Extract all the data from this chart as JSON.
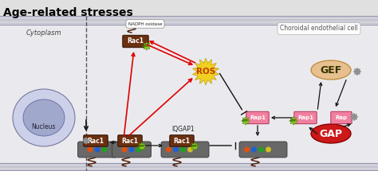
{
  "title": "Age-related stresses",
  "title_fontsize": 10,
  "title_fontweight": "bold",
  "bg_outer": "#e0e0e0",
  "bg_cell": "#e8e8ec",
  "cell_label": "Choroidal endothelial cell",
  "cytoplasm_label": "Cytoplasm",
  "nucleus_label": "Nucleus",
  "iqgap1_label": "IQGAP1",
  "ros_label": "ROS",
  "gef_label": "GEF",
  "gap_label": "GAP",
  "nadph_label": "NADPH oxidase",
  "rac1_color": "#6b3010",
  "rap1_color": "#f080a0",
  "gef_color": "#e8c090",
  "gap_color": "#cc1818",
  "ros_color": "#f0d030",
  "arrow_red": "#e00000",
  "arrow_black": "#111111",
  "gtp_color": "#88cc20",
  "membrane_rod_color": "#707070",
  "nucleus_outer": "#c0c8e0",
  "nucleus_inner": "#a0aad0",
  "star_color": "#909090"
}
